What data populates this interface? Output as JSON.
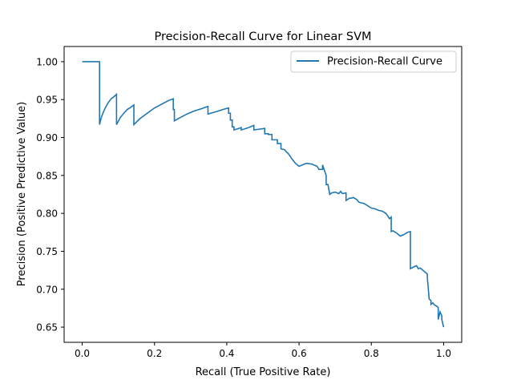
{
  "chart_data": {
    "type": "line",
    "title": "Precision-Recall Curve for Linear SVM",
    "xlabel": "Recall (True Positive Rate)",
    "ylabel": "Precision (Positive Predictive Value)",
    "xlim": [
      -0.05,
      1.05
    ],
    "ylim": [
      0.63,
      1.02
    ],
    "xticks": [
      0.0,
      0.2,
      0.4,
      0.6,
      0.8,
      1.0
    ],
    "xtick_labels": [
      "0.0",
      "0.2",
      "0.4",
      "0.6",
      "0.8",
      "1.0"
    ],
    "yticks": [
      0.65,
      0.7,
      0.75,
      0.8,
      0.85,
      0.9,
      0.95,
      1.0
    ],
    "ytick_labels": [
      "0.65",
      "0.70",
      "0.75",
      "0.80",
      "0.85",
      "0.90",
      "0.95",
      "1.00"
    ],
    "grid": false,
    "legend_position": "top-right",
    "colors": {
      "series": "#1f77b4",
      "axes": "#000000",
      "background": "#ffffff"
    },
    "series": [
      {
        "name": "Precision-Recall Curve",
        "x": [
          0.0,
          0.048,
          0.048,
          0.052,
          0.058,
          0.065,
          0.072,
          0.08,
          0.088,
          0.095,
          0.095,
          0.105,
          0.115,
          0.125,
          0.135,
          0.143,
          0.143,
          0.16,
          0.18,
          0.2,
          0.22,
          0.24,
          0.252,
          0.252,
          0.255,
          0.255,
          0.27,
          0.29,
          0.31,
          0.33,
          0.348,
          0.348,
          0.37,
          0.39,
          0.405,
          0.405,
          0.41,
          0.41,
          0.415,
          0.415,
          0.42,
          0.42,
          0.44,
          0.44,
          0.46,
          0.475,
          0.475,
          0.49,
          0.505,
          0.505,
          0.515,
          0.515,
          0.525,
          0.525,
          0.54,
          0.54,
          0.55,
          0.55,
          0.56,
          0.565,
          0.57,
          0.58,
          0.59,
          0.6,
          0.62,
          0.635,
          0.65,
          0.655,
          0.665,
          0.665,
          0.675,
          0.675,
          0.68,
          0.685,
          0.685,
          0.69,
          0.7,
          0.71,
          0.715,
          0.72,
          0.73,
          0.73,
          0.74,
          0.745,
          0.75,
          0.76,
          0.765,
          0.77,
          0.78,
          0.79,
          0.8,
          0.81,
          0.82,
          0.83,
          0.84,
          0.845,
          0.85,
          0.855,
          0.855,
          0.86,
          0.87,
          0.88,
          0.89,
          0.9,
          0.908,
          0.908,
          0.92,
          0.925,
          0.93,
          0.935,
          0.94,
          0.945,
          0.95,
          0.955,
          0.955,
          0.96,
          0.965,
          0.965,
          0.97,
          0.975,
          0.98,
          0.985,
          0.985,
          0.99,
          0.995,
          0.995,
          1.0
        ],
        "y": [
          1.0,
          1.0,
          0.917,
          0.925,
          0.933,
          0.94,
          0.946,
          0.951,
          0.954,
          0.957,
          0.917,
          0.926,
          0.932,
          0.937,
          0.94,
          0.943,
          0.917,
          0.925,
          0.932,
          0.939,
          0.944,
          0.949,
          0.951,
          0.937,
          0.937,
          0.922,
          0.926,
          0.931,
          0.935,
          0.938,
          0.941,
          0.931,
          0.934,
          0.937,
          0.939,
          0.932,
          0.932,
          0.923,
          0.923,
          0.914,
          0.914,
          0.91,
          0.913,
          0.91,
          0.913,
          0.916,
          0.91,
          0.911,
          0.912,
          0.905,
          0.905,
          0.904,
          0.904,
          0.897,
          0.897,
          0.892,
          0.892,
          0.885,
          0.884,
          0.881,
          0.879,
          0.872,
          0.866,
          0.862,
          0.866,
          0.865,
          0.862,
          0.858,
          0.858,
          0.864,
          0.85,
          0.838,
          0.838,
          0.825,
          0.825,
          0.827,
          0.828,
          0.826,
          0.829,
          0.826,
          0.827,
          0.817,
          0.82,
          0.82,
          0.821,
          0.818,
          0.815,
          0.814,
          0.813,
          0.81,
          0.807,
          0.806,
          0.804,
          0.803,
          0.8,
          0.797,
          0.793,
          0.795,
          0.776,
          0.777,
          0.774,
          0.77,
          0.772,
          0.775,
          0.776,
          0.727,
          0.73,
          0.731,
          0.727,
          0.728,
          0.726,
          0.724,
          0.722,
          0.72,
          0.715,
          0.687,
          0.685,
          0.68,
          0.682,
          0.679,
          0.678,
          0.676,
          0.66,
          0.67,
          0.665,
          0.66,
          0.65
        ]
      }
    ]
  }
}
